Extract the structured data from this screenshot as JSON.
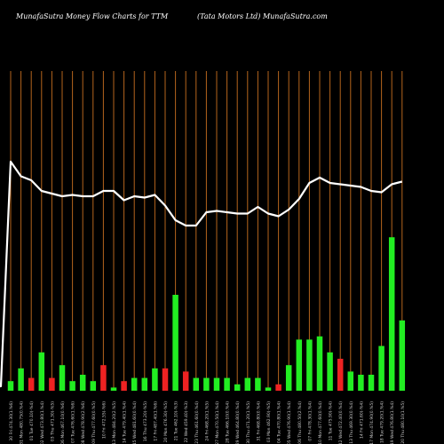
{
  "header": {
    "left": "MunafaSutra  Money Flow  Charts for TTM",
    "right": "(Tata  Motors Ltd) MunafaSutra.com"
  },
  "chart_data": {
    "type": "bar",
    "title": "",
    "colors": {
      "background": "#000000",
      "up": "#22ee22",
      "down": "#ee2222",
      "line": "#ffffff",
      "grid": "#b5651d"
    },
    "categories": [
      "30 Fri 474.30(1.%6)",
      "31 Mon 480.75(0.%4)",
      "01 Tue 470.10(-%4)",
      "02 Wed 473.80(1.%4)",
      "03 Thu 471.30(-%5)",
      "06 Mon 467.10(0.%6)",
      "07 Tue 476.60(1.%6)",
      "08 Wed 478.90(2.%6)",
      "09 Thu 477.60(0.%5)",
      "10 Fri 472.55(-%6)",
      "13 Mon 484.20(2.%5)",
      "14 Tue 479.40(1.%4)",
      "15 Wed 481.60(0.%4)",
      "16 Thu 473.20(-%5)",
      "17 Fri 487.40(1.%6)",
      "20 Mon 476.30(-%5)",
      "21 Tue 462.10(-%3)",
      "22 Wed 459.40(-%3)",
      "23 Thu 461.60(0.%4)",
      "24 Fri 468.20(1.%5)",
      "27 Mon 470.50(1.%4)",
      "28 Tue 466.10(0.%4)",
      "29 Wed 464.80(0.%4)",
      "30 Thu 471.20(1.%5)",
      "31 Fri 468.80(0.%4)",
      "03 Mon 462.90(-%5)",
      "04 Tue 470.80(1.%4)",
      "05 Wed 476.90(1.%4)",
      "06 Thu 480.50(2.%4)",
      "07 Fri 478.30(1.%4)",
      "10 Mon 477.60(0.%4)",
      "11 Tue 475.90(-%4)",
      "12 Wed 472.40(0.%4)",
      "13 Thu 469.30(0.%4)",
      "14 Fri 471.60(-%4)",
      "17 Mon 474.90(0.%5)",
      "18 Tue 479.20(1.%4)",
      "19 Wed 476.80(1.%4)",
      "20 Thu 480.10(1.%5)"
    ],
    "up": [
      true,
      true,
      false,
      true,
      false,
      true,
      true,
      true,
      true,
      false,
      true,
      false,
      true,
      true,
      true,
      false,
      true,
      false,
      true,
      true,
      true,
      true,
      true,
      true,
      true,
      true,
      false,
      true,
      true,
      true,
      true,
      true,
      false,
      true,
      true,
      true,
      true,
      true,
      true
    ],
    "values": [
      3,
      7,
      4,
      12,
      4,
      8,
      3,
      5,
      3,
      8,
      1,
      3,
      4,
      4,
      7,
      7,
      30,
      6,
      4,
      4,
      4,
      4,
      2,
      4,
      4,
      1,
      2,
      8,
      16,
      16,
      17,
      12,
      10,
      6,
      5,
      5,
      14,
      48,
      22
    ],
    "price_line": [
      172,
      161,
      158,
      150,
      148,
      146,
      147,
      146,
      146,
      150,
      150,
      143,
      146,
      145,
      147,
      139,
      128,
      124,
      124,
      134,
      135,
      134,
      133,
      133,
      138,
      133,
      131,
      136,
      144,
      156,
      160,
      156,
      155,
      154,
      153,
      150,
      149,
      155,
      157
    ]
  }
}
